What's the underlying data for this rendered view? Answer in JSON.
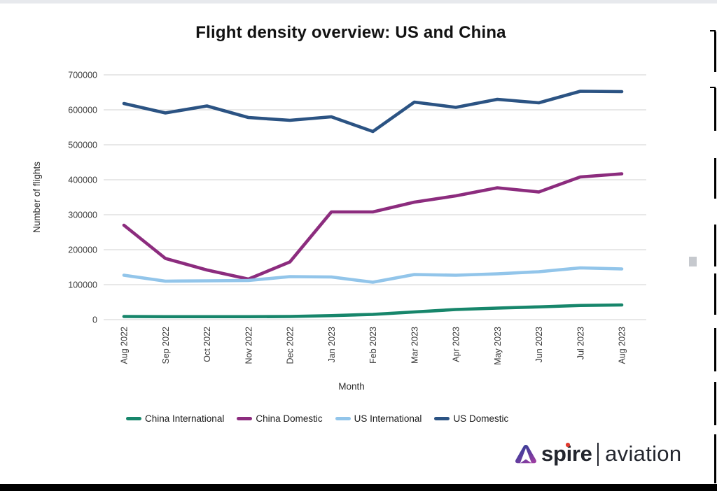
{
  "page": {
    "title": "Flight density overview: US and China"
  },
  "chart_data": {
    "type": "line",
    "title": "Flight density overview: US and China",
    "xlabel": "Month",
    "ylabel": "Number of flights",
    "ylim": [
      0,
      700000
    ],
    "yticks": [
      0,
      100000,
      200000,
      300000,
      400000,
      500000,
      600000,
      700000
    ],
    "grid": "horizontal",
    "legend_position": "bottom",
    "categories": [
      "Aug 2022",
      "Sep 2022",
      "Oct 2022",
      "Nov 2022",
      "Dec 2022",
      "Jan 2023",
      "Feb 2023",
      "Mar 2023",
      "Apr 2023",
      "May 2023",
      "Jun 2023",
      "Jul 2023",
      "Aug 2023"
    ],
    "series": [
      {
        "name": "China International",
        "color": "#17866b",
        "values": [
          9000,
          8500,
          8500,
          8500,
          9000,
          11500,
          15000,
          22000,
          29000,
          33000,
          36500,
          40500,
          42000
        ]
      },
      {
        "name": "China Domestic",
        "color": "#8c2c7e",
        "values": [
          270000,
          175000,
          142000,
          116000,
          165000,
          308000,
          308000,
          336000,
          354000,
          377000,
          365000,
          408000,
          417000
        ]
      },
      {
        "name": "US International",
        "color": "#92c5ea",
        "values": [
          127000,
          110000,
          111000,
          112000,
          123000,
          122000,
          107000,
          129000,
          127000,
          131000,
          137000,
          148000,
          145000
        ]
      },
      {
        "name": "US Domestic",
        "color": "#2b5383",
        "values": [
          618000,
          591000,
          611000,
          578000,
          570000,
          580000,
          538000,
          622000,
          607000,
          630000,
          620000,
          653000,
          652000
        ]
      }
    ]
  },
  "legend": {
    "entries": [
      "China International",
      "China Domestic",
      "US International",
      "US Domestic"
    ]
  },
  "logo": {
    "icon": "spire-triangle-logo",
    "brand": "spire",
    "product": "aviation"
  }
}
